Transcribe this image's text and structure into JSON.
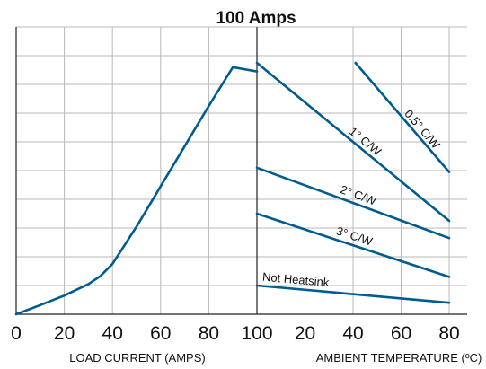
{
  "chart_data": {
    "type": "line",
    "title": "100 Amps",
    "grid": true,
    "left_panel": {
      "xlabel": "LOAD CURRENT (AMPS)",
      "xticks": [
        "0",
        "20",
        "40",
        "60",
        "80",
        "100"
      ],
      "xlim": [
        0,
        100
      ],
      "ylim": [
        0,
        10
      ],
      "series": [
        {
          "x": [
            0,
            10,
            20,
            30,
            35,
            40,
            50,
            60,
            70,
            80,
            90,
            100
          ],
          "y": [
            0,
            0.32,
            0.65,
            1.05,
            1.33,
            1.75,
            3.05,
            4.45,
            5.85,
            7.25,
            8.6,
            8.45
          ]
        }
      ]
    },
    "right_panel": {
      "xlabel": "AMBIENT TEMPERATURE (ºC)",
      "xticks": [
        "20",
        "40",
        "60",
        "80"
      ],
      "xlim": [
        0,
        80
      ],
      "ylim": [
        0,
        10
      ],
      "series": [
        {
          "name": "0.5° C/W",
          "x": [
            41,
            80
          ],
          "y": [
            8.75,
            4.95
          ]
        },
        {
          "name": "1° C/W",
          "x": [
            0,
            80
          ],
          "y": [
            8.75,
            3.25
          ]
        },
        {
          "name": "2° C/W",
          "x": [
            0,
            80
          ],
          "y": [
            5.1,
            2.65
          ]
        },
        {
          "name": "3° C/W",
          "x": [
            0,
            80
          ],
          "y": [
            3.5,
            1.3
          ]
        },
        {
          "name": "Not Heatsink",
          "x": [
            0,
            80
          ],
          "y": [
            1,
            0.4
          ]
        }
      ]
    }
  }
}
